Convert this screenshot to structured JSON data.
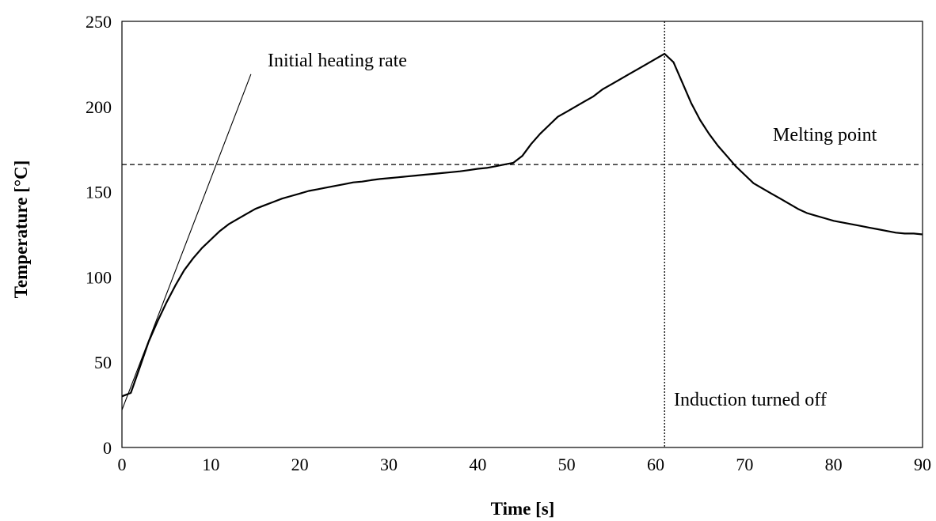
{
  "chart_data": {
    "type": "line",
    "title": "",
    "xlabel": "Time [s]",
    "ylabel": "Temperature [°C]",
    "xlim": [
      0,
      90
    ],
    "ylim": [
      0,
      250
    ],
    "xticks": [
      "0",
      "10",
      "20",
      "30",
      "40",
      "50",
      "60",
      "70",
      "80",
      "90"
    ],
    "yticks": [
      "0",
      "50",
      "100",
      "150",
      "200",
      "250"
    ],
    "grid": false,
    "legend": "none",
    "series": [
      {
        "x": [
          0,
          1,
          2,
          3,
          4,
          5,
          6,
          7,
          8,
          9,
          10,
          11,
          12,
          13,
          14,
          15,
          16,
          17,
          18,
          19,
          20,
          21,
          22,
          23,
          24,
          25,
          26,
          27,
          28,
          29,
          30,
          31,
          32,
          33,
          34,
          35,
          36,
          37,
          38,
          39,
          40,
          41,
          42,
          43,
          44,
          45,
          46,
          47,
          48,
          49,
          50,
          51,
          52,
          53,
          54,
          55,
          56,
          57,
          58,
          59,
          60,
          61,
          62,
          63,
          64,
          65,
          66,
          67,
          68,
          69,
          70,
          71,
          72,
          73,
          74,
          75,
          76,
          77,
          78,
          79,
          80,
          81,
          82,
          83,
          84,
          85,
          86,
          87,
          88,
          89,
          90
        ],
        "y": [
          30,
          32,
          47,
          62,
          74,
          85,
          95,
          104,
          111,
          117,
          122,
          127,
          131,
          134,
          137,
          140,
          142,
          144,
          146,
          147.5,
          149,
          150.5,
          151.5,
          152.5,
          153.5,
          154.5,
          155.5,
          156,
          156.8,
          157.5,
          158,
          158.5,
          159,
          159.5,
          160,
          160.5,
          161,
          161.5,
          162,
          162.7,
          163.5,
          164,
          165,
          166,
          167,
          171,
          178,
          184,
          189,
          194,
          197,
          200,
          203,
          206,
          210,
          213,
          216,
          219,
          222,
          225,
          228,
          231,
          226,
          214,
          202,
          192,
          184,
          177,
          171,
          165,
          160,
          155,
          152,
          149,
          146,
          143,
          140,
          137.5,
          136,
          134.5,
          133,
          132,
          131,
          130,
          129,
          128,
          127,
          126,
          125.5,
          125.5,
          125
        ]
      }
    ],
    "reference_lines": {
      "heating_rate": {
        "x": [
          0,
          14.5
        ],
        "y": [
          22,
          219
        ]
      },
      "melting_point_y": 166,
      "induction_off_x": 61
    },
    "annotations": {
      "heating_rate": "Initial heating rate",
      "melting_point": "Melting point",
      "induction_off": "Induction turned off"
    }
  }
}
